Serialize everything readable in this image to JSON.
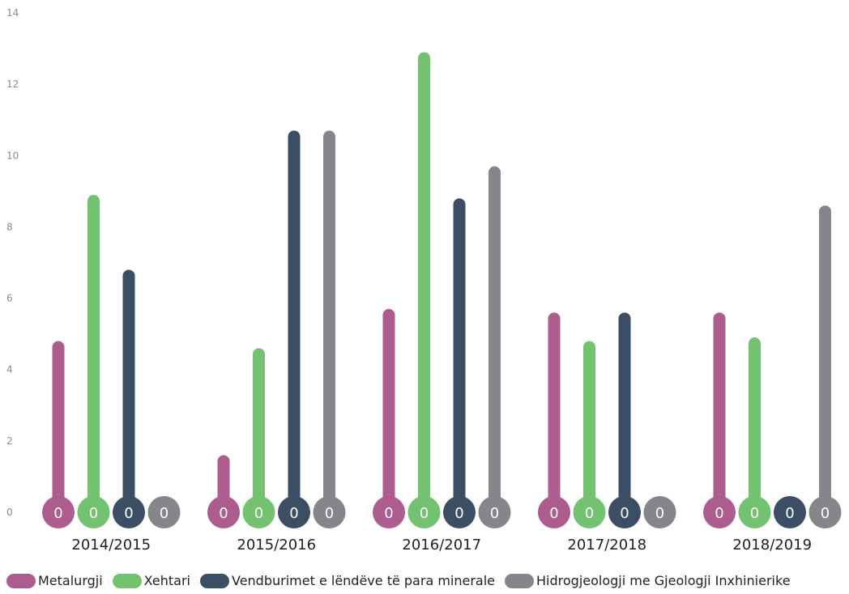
{
  "chart_data": {
    "type": "bar",
    "categories": [
      "2014/2015",
      "2015/2016",
      "2016/2017",
      "2017/2018",
      "2018/2019"
    ],
    "series": [
      {
        "name": "Metalurgji",
        "color": "#ad5c8e",
        "values": [
          4.8,
          1.6,
          5.7,
          5.6,
          5.6
        ]
      },
      {
        "name": "Xehtari",
        "color": "#72c26f",
        "values": [
          8.9,
          4.6,
          12.9,
          4.8,
          4.9
        ]
      },
      {
        "name": "Vendburimet e lëndëve të para minerale",
        "color": "#3c4e63",
        "values": [
          6.8,
          10.7,
          8.8,
          5.6,
          0
        ]
      },
      {
        "name": "Hidrogjeologji me Gjeologji Inxhinierike",
        "color": "#85868b",
        "values": [
          0,
          10.7,
          9.7,
          0,
          8.6
        ]
      }
    ],
    "data_labels": [
      "0",
      "0",
      "0",
      "0"
    ],
    "yticks": [
      "0",
      "2",
      "4",
      "6",
      "8",
      "10",
      "12",
      "14"
    ],
    "ylim": [
      0,
      14
    ],
    "grid": false,
    "legend_position": "bottom-left",
    "title": "",
    "xlabel": "",
    "ylabel": ""
  }
}
